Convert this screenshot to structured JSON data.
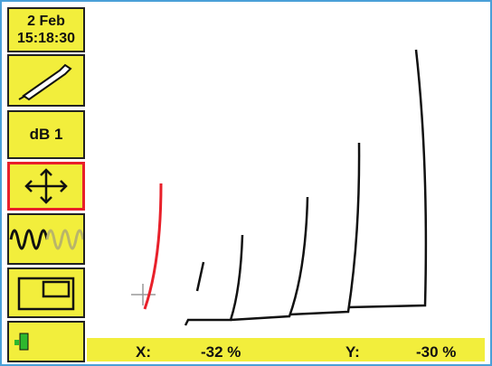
{
  "header": {
    "date": "2 Feb",
    "time": "15:18:30"
  },
  "gain": "dB 1",
  "status": {
    "x_label": "X:",
    "x_value": "-32 %",
    "y_label": "Y:",
    "y_value": "-30 %"
  }
}
